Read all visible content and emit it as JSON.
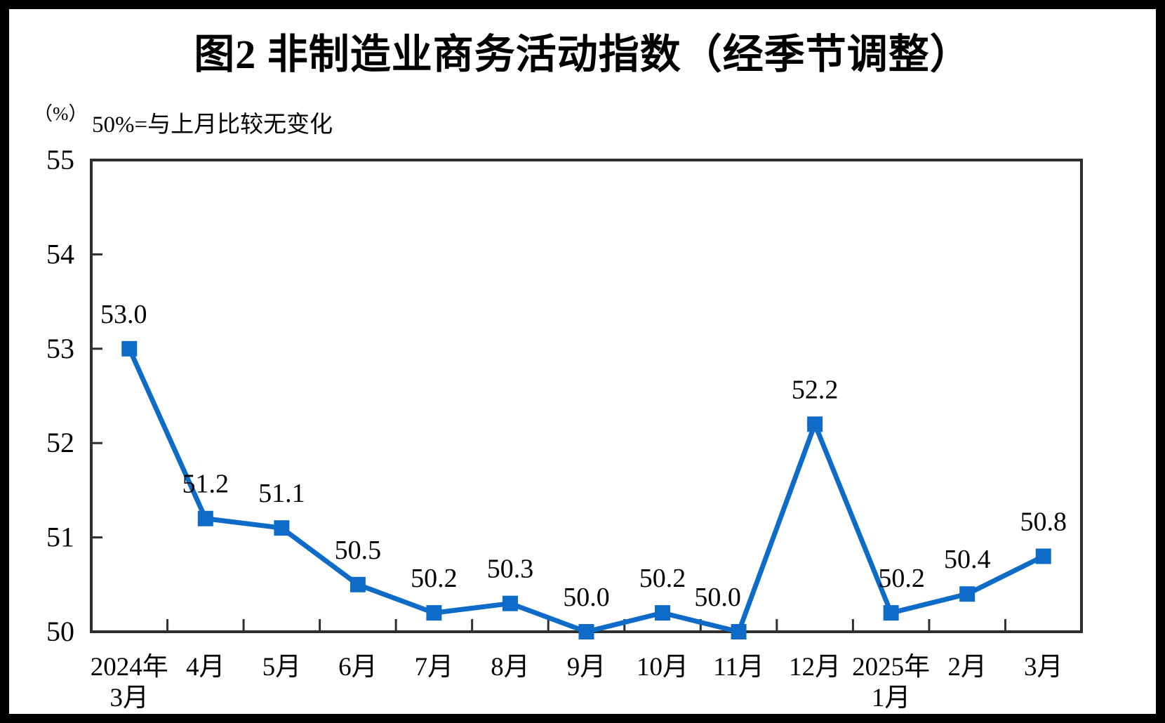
{
  "figure": {
    "title": "图2 非制造业商务活动指数（经季节调整）",
    "unit_label": "（%）",
    "note": "50%=与上月比较无变化"
  },
  "chart_data": {
    "type": "line",
    "title": "图2 非制造业商务活动指数（经季节调整）",
    "unit": "（%）",
    "annotation": "50%=与上月比较无变化",
    "categories": [
      "2024年\n3月",
      "4月",
      "5月",
      "6月",
      "7月",
      "8月",
      "9月",
      "10月",
      "11月",
      "12月",
      "2025年\n1月",
      "2月",
      "3月"
    ],
    "series": [
      {
        "name": "非制造业商务活动指数",
        "values": [
          53.0,
          51.2,
          51.1,
          50.5,
          50.2,
          50.3,
          50.0,
          50.2,
          50.0,
          52.2,
          50.2,
          50.4,
          50.8
        ]
      }
    ],
    "data_labels": [
      "53.0",
      "51.2",
      "51.1",
      "50.5",
      "50.2",
      "50.3",
      "50.0",
      "50.2",
      "50.0",
      "52.2",
      "50.2",
      "50.4",
      "50.8"
    ],
    "xlabel": "",
    "ylabel": "",
    "ylim": [
      50,
      55
    ],
    "y_ticks": [
      50,
      51,
      52,
      53,
      54,
      55
    ],
    "grid": false,
    "legend": "none",
    "line_color": "#0e6cc8",
    "axis_color": "#2f2f2f",
    "marker": "square"
  }
}
